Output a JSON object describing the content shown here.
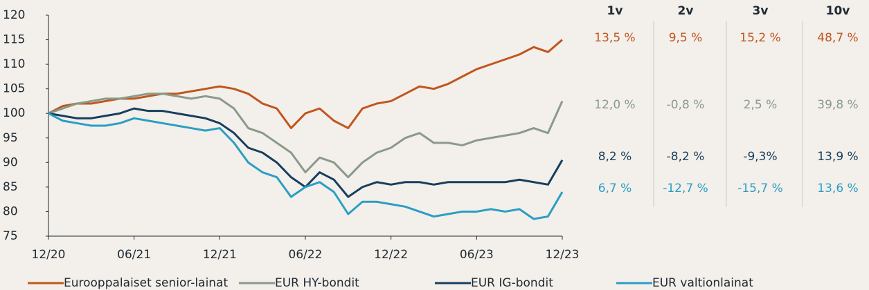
{
  "chart_data": {
    "type": "line",
    "xlim": [
      0,
      36
    ],
    "xticks": [
      {
        "value": 0,
        "label": "12/20"
      },
      {
        "value": 6,
        "label": "06/21"
      },
      {
        "value": 12,
        "label": "12/21"
      },
      {
        "value": 18,
        "label": "06/22"
      },
      {
        "value": 24,
        "label": "12/22"
      },
      {
        "value": 30,
        "label": "06/23"
      },
      {
        "value": 36,
        "label": "12/23"
      }
    ],
    "ylim": [
      75,
      120
    ],
    "yticks": [
      75,
      80,
      85,
      90,
      95,
      100,
      105,
      110,
      115,
      120
    ],
    "grid": false,
    "legend": "bottom",
    "x": [
      0,
      1,
      2,
      3,
      4,
      5,
      6,
      7,
      8,
      9,
      10,
      11,
      12,
      13,
      14,
      15,
      16,
      17,
      18,
      19,
      20,
      21,
      22,
      23,
      24,
      25,
      26,
      27,
      28,
      29,
      30,
      31,
      32,
      33,
      34,
      35,
      36
    ],
    "series": [
      {
        "name": "Eurooppalaiset senior-lainat",
        "color": "#c0561e",
        "values": [
          100,
          101.5,
          102,
          102,
          102.5,
          103,
          103,
          103.5,
          104,
          104,
          104.5,
          105,
          105.5,
          105,
          104,
          102,
          101,
          97,
          100,
          101,
          98.5,
          97,
          101,
          102,
          102.5,
          104,
          105.5,
          105,
          106,
          107.5,
          109,
          110,
          111,
          112,
          113.5,
          112.5,
          115
        ]
      },
      {
        "name": "EUR HY-bondit",
        "color": "#8a9a8a",
        "values": [
          100,
          101,
          102,
          102.5,
          103,
          103,
          103.5,
          104,
          104,
          103.5,
          103,
          103.5,
          103,
          101,
          97,
          96,
          94,
          92,
          88,
          91,
          90,
          87,
          90,
          92,
          93,
          95,
          96,
          94,
          94,
          93.5,
          94.5,
          95,
          95.5,
          96,
          97,
          96,
          102.5
        ]
      },
      {
        "name": "EUR IG-bondit",
        "color": "#163f5e",
        "values": [
          100,
          99.5,
          99,
          99,
          99.5,
          100,
          101,
          100.5,
          100.5,
          100,
          99.5,
          99,
          98,
          96,
          93,
          92,
          90,
          87,
          85,
          88,
          86.5,
          83,
          85,
          86,
          85.5,
          86,
          86,
          85.5,
          86,
          86,
          86,
          86,
          86,
          86.5,
          86,
          85.5,
          90.5
        ]
      },
      {
        "name": "EUR valtionlainat",
        "color": "#2a9ec4",
        "values": [
          100,
          98.5,
          98,
          97.5,
          97.5,
          98,
          99,
          98.5,
          98,
          97.5,
          97,
          96.5,
          97,
          94,
          90,
          88,
          87,
          83,
          85,
          86,
          84,
          79.5,
          82,
          82,
          81.5,
          81,
          80,
          79,
          79.5,
          80,
          80,
          80.5,
          80,
          80.5,
          78.5,
          79,
          84
        ]
      }
    ]
  },
  "table": {
    "columns": [
      "1v",
      "2v",
      "3v",
      "10v"
    ],
    "rows": [
      [
        "13,5 %",
        "9,5 %",
        "15,2 %",
        "48,7 %"
      ],
      [
        "12,0 %",
        "-0,8 %",
        "2,5 %",
        "39,8 %"
      ],
      [
        "8,2 %",
        "-8,2 %",
        "-9,3%",
        "13,9 %"
      ],
      [
        "6,7 %",
        "-12,7 %",
        "-15,7 %",
        "13,6 %"
      ]
    ]
  }
}
